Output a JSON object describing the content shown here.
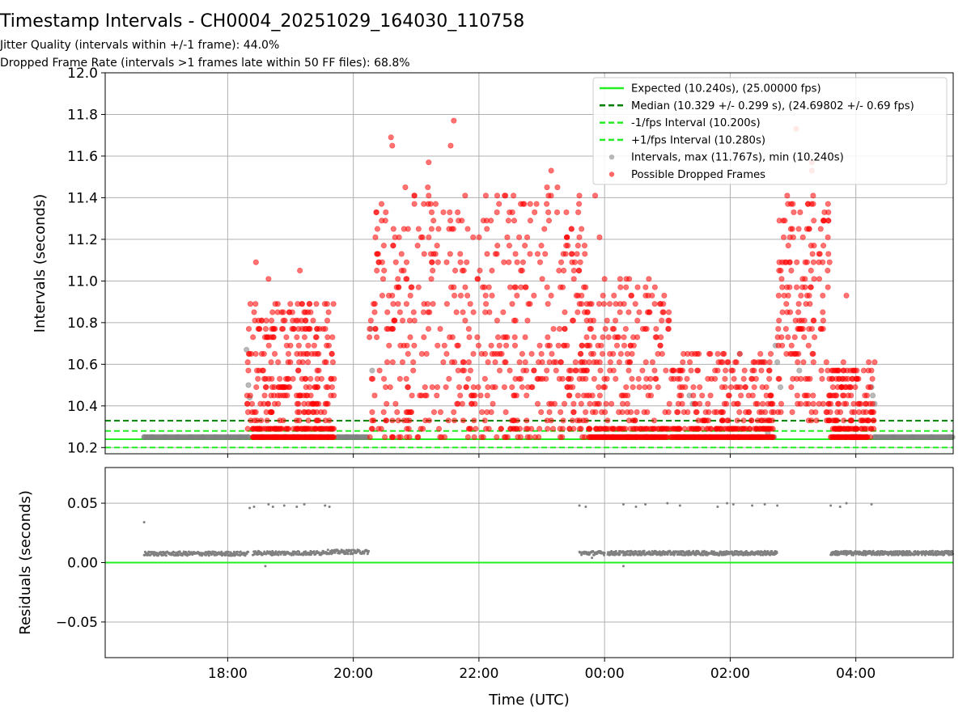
{
  "figure": {
    "title": "Timestamp Intervals - CH0004_20251029_164030_110758",
    "subtitle_jitter": "Jitter Quality (intervals within +/-1 frame): 44.0%",
    "subtitle_dropped": "Dropped Frame Rate (intervals >1 frames late within 50 FF files): 68.8%"
  },
  "colors": {
    "expected": "#22ee22",
    "median": "#008000",
    "fps_bound": "#22ee22",
    "intervals": "#808080",
    "dropped": "#ff0000",
    "grid": "#b0b0b0"
  },
  "chart_data": [
    {
      "type": "scatter",
      "title": "Intervals",
      "xlabel": "",
      "ylabel": "Intervals (seconds)",
      "xlim_hours": [
        16.05,
        29.55
      ],
      "ylim": [
        10.17,
        12.0
      ],
      "grid": true,
      "xticks": [
        {
          "value": 18,
          "label": "18:00"
        },
        {
          "value": 20,
          "label": "20:00"
        },
        {
          "value": 22,
          "label": "22:00"
        },
        {
          "value": 24,
          "label": "00:00"
        },
        {
          "value": 26,
          "label": "02:00"
        },
        {
          "value": 28,
          "label": "04:00"
        }
      ],
      "yticks": [
        {
          "value": 10.2,
          "label": "10.2"
        },
        {
          "value": 10.4,
          "label": "10.4"
        },
        {
          "value": 10.6,
          "label": "10.6"
        },
        {
          "value": 10.8,
          "label": "10.8"
        },
        {
          "value": 11.0,
          "label": "11.0"
        },
        {
          "value": 11.2,
          "label": "11.2"
        },
        {
          "value": 11.4,
          "label": "11.4"
        },
        {
          "value": 11.6,
          "label": "11.6"
        },
        {
          "value": 11.8,
          "label": "11.8"
        },
        {
          "value": 12.0,
          "label": "12.0"
        }
      ],
      "reference_lines": [
        {
          "name": "expected",
          "value": 10.24,
          "style": "solid"
        },
        {
          "name": "median",
          "value": 10.329,
          "style": "dashed"
        },
        {
          "name": "minus_fps",
          "value": 10.2,
          "style": "dashed"
        },
        {
          "name": "plus_fps",
          "value": 10.28,
          "style": "dashed"
        }
      ],
      "legend_position": "top-right",
      "legend": [
        {
          "label": "Expected (10.240s), (25.00000 fps)",
          "kind": "solid-line"
        },
        {
          "label": "Median (10.329 +/- 0.299 s), (24.69802 +/- 0.69 fps)",
          "kind": "dashed-dark"
        },
        {
          "label": "-1/fps Interval (10.200s)",
          "kind": "dashed-light"
        },
        {
          "label": "+1/fps Interval (10.280s)",
          "kind": "dashed-light"
        },
        {
          "label": "Intervals, max (11.767s), min (10.240s)",
          "kind": "gray-dot"
        },
        {
          "label": "Possible Dropped Frames",
          "kind": "red-dot"
        }
      ],
      "series": [
        {
          "name": "Intervals (baseline)",
          "points": [
            [
              16.67,
              10.25
            ],
            [
              16.8,
              10.25
            ],
            [
              17.0,
              10.25
            ],
            [
              17.2,
              10.25
            ],
            [
              17.4,
              10.25
            ],
            [
              17.6,
              10.25
            ],
            [
              17.8,
              10.25
            ],
            [
              18.0,
              10.25
            ],
            [
              18.2,
              10.25
            ],
            [
              18.33,
              10.25
            ],
            [
              19.75,
              10.25
            ],
            [
              19.9,
              10.25
            ],
            [
              20.05,
              10.25
            ],
            [
              20.22,
              10.25
            ],
            [
              24.0,
              10.25
            ],
            [
              24.5,
              10.25
            ],
            [
              25.5,
              10.25
            ],
            [
              26.7,
              10.25
            ],
            [
              28.3,
              10.25
            ],
            [
              28.6,
              10.25
            ],
            [
              28.9,
              10.25
            ],
            [
              29.2,
              10.25
            ],
            [
              29.5,
              10.25
            ]
          ]
        },
        {
          "name": "Intervals (gray outliers)",
          "points": [
            [
              18.3,
              10.67
            ],
            [
              18.33,
              10.5
            ],
            [
              18.35,
              10.44
            ],
            [
              20.28,
              10.77
            ],
            [
              20.3,
              10.57
            ],
            [
              25.35,
              10.45
            ],
            [
              25.4,
              10.41
            ],
            [
              26.15,
              10.65
            ],
            [
              26.5,
              10.61
            ],
            [
              26.6,
              10.27
            ],
            [
              26.72,
              10.69
            ],
            [
              26.75,
              10.61
            ],
            [
              26.8,
              10.49
            ],
            [
              27.1,
              10.57
            ],
            [
              28.25,
              10.49
            ],
            [
              28.27,
              10.45
            ],
            [
              28.3,
              10.41
            ]
          ]
        },
        {
          "name": "Possible Dropped Frames",
          "clusters": [
            {
              "x": [
                18.3,
                19.7
              ],
              "y": [
                10.25,
                10.9
              ],
              "count": 300,
              "peaks": [
                [
                  18.45,
                  11.09
                ],
                [
                  18.65,
                  11.01
                ],
                [
                  19.15,
                  11.05
                ],
                [
                  19.3,
                  10.89
                ]
              ]
            },
            {
              "x": [
                20.25,
                23.7
              ],
              "y": [
                10.25,
                11.45
              ],
              "count": 560,
              "peaks": [
                [
                  20.6,
                  11.69
                ],
                [
                  20.62,
                  11.65
                ],
                [
                  21.6,
                  11.77
                ],
                [
                  21.55,
                  11.65
                ],
                [
                  21.2,
                  11.57
                ],
                [
                  22.55,
                  11.41
                ],
                [
                  23.15,
                  11.53
                ],
                [
                  23.25,
                  11.45
                ]
              ]
            },
            {
              "x": [
                23.6,
                25.05
              ],
              "y": [
                10.25,
                11.0
              ],
              "count": 220,
              "peaks": [
                [
                  23.85,
                  11.41
                ],
                [
                  23.92,
                  11.21
                ],
                [
                  24.0,
                  11.01
                ]
              ]
            },
            {
              "x": [
                25.05,
                26.7
              ],
              "y": [
                10.25,
                10.65
              ],
              "count": 200,
              "peaks": [
                [
                  25.5,
                  10.65
                ],
                [
                  26.1,
                  10.61
                ]
              ]
            },
            {
              "x": [
                26.75,
                27.6
              ],
              "y": [
                10.33,
                11.4
              ],
              "count": 180,
              "peaks": [
                [
                  27.05,
                  11.73
                ],
                [
                  27.3,
                  11.57
                ],
                [
                  27.3,
                  11.53
                ],
                [
                  27.32,
                  11.41
                ]
              ]
            },
            {
              "x": [
                27.6,
                28.3
              ],
              "y": [
                10.25,
                10.6
              ],
              "count": 140,
              "peaks": [
                [
                  27.85,
                  10.93
                ],
                [
                  28.3,
                  10.61
                ]
              ]
            }
          ],
          "bottom_runs": [
            [
              18.4,
              19.7
            ],
            [
              23.75,
              25.0
            ],
            [
              25.05,
              26.7
            ],
            [
              27.6,
              28.2
            ]
          ]
        }
      ]
    },
    {
      "type": "scatter",
      "title": "Residuals",
      "xlabel": "Time (UTC)",
      "ylabel": "Residuals (seconds)",
      "xlim_hours": [
        16.05,
        29.55
      ],
      "ylim": [
        -0.08,
        0.08
      ],
      "grid": true,
      "xticks": [
        {
          "value": 18,
          "label": "18:00"
        },
        {
          "value": 20,
          "label": "20:00"
        },
        {
          "value": 22,
          "label": "22:00"
        },
        {
          "value": 24,
          "label": "00:00"
        },
        {
          "value": 26,
          "label": "02:00"
        },
        {
          "value": 28,
          "label": "04:00"
        }
      ],
      "yticks": [
        {
          "value": 0.05,
          "label": "0.05"
        },
        {
          "value": 0.0,
          "label": "0.00"
        },
        {
          "value": -0.05,
          "label": "−0.05"
        }
      ],
      "reference_lines": [
        {
          "name": "zero",
          "value": 0.0,
          "style": "solid"
        }
      ],
      "series": [
        {
          "name": "residual outliers",
          "points": [
            [
              16.67,
              0.034
            ],
            [
              18.35,
              0.046
            ],
            [
              18.42,
              0.047
            ],
            [
              18.65,
              0.049
            ],
            [
              18.72,
              0.047
            ],
            [
              18.9,
              0.048
            ],
            [
              19.1,
              0.047
            ],
            [
              19.22,
              0.049
            ],
            [
              19.55,
              0.048
            ],
            [
              19.62,
              0.047
            ],
            [
              23.6,
              0.048
            ],
            [
              23.7,
              0.047
            ],
            [
              24.3,
              0.049
            ],
            [
              24.5,
              0.047
            ],
            [
              24.65,
              0.049
            ],
            [
              25.0,
              0.05
            ],
            [
              25.2,
              0.048
            ],
            [
              25.8,
              0.047
            ],
            [
              25.95,
              0.05
            ],
            [
              26.05,
              0.049
            ],
            [
              26.35,
              0.048
            ],
            [
              26.55,
              0.049
            ],
            [
              26.75,
              0.048
            ],
            [
              27.6,
              0.048
            ],
            [
              27.75,
              0.047
            ],
            [
              27.85,
              0.05
            ],
            [
              28.25,
              0.049
            ],
            [
              24.3,
              -0.003
            ],
            [
              18.6,
              -0.003
            ],
            [
              23.8,
              0.004
            ]
          ]
        },
        {
          "name": "residual bands",
          "bands": [
            [
              16.67,
              18.33,
              0.0075
            ],
            [
              18.4,
              19.5,
              0.008
            ],
            [
              19.5,
              20.25,
              0.009
            ],
            [
              23.6,
              24.0,
              0.008
            ],
            [
              24.05,
              26.75,
              0.008
            ],
            [
              27.6,
              29.55,
              0.008
            ]
          ]
        }
      ]
    }
  ]
}
